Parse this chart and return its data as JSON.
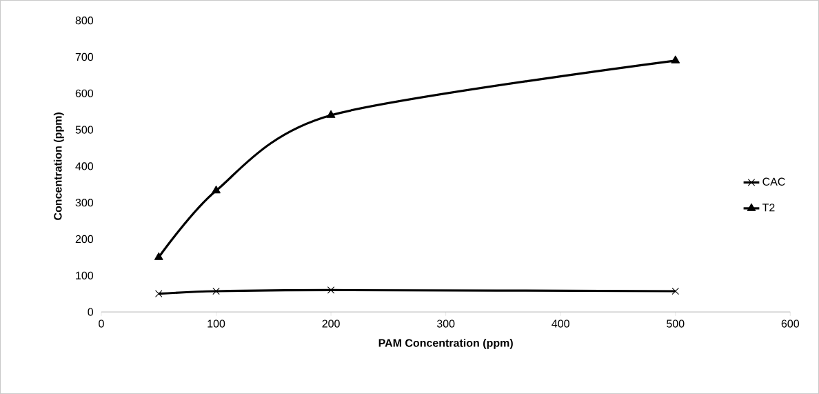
{
  "chart_data": {
    "type": "line",
    "xlabel": "PAM Concentration (ppm)",
    "ylabel": "Concentration (ppm)",
    "x": [
      50,
      100,
      200,
      500
    ],
    "series": [
      {
        "name": "CAC",
        "color": "#000000",
        "marker": "cross",
        "values": [
          50,
          57,
          60,
          57
        ]
      },
      {
        "name": "T2",
        "color": "#000000",
        "marker": "triangle",
        "values": [
          150,
          333,
          540,
          690
        ]
      }
    ],
    "xlim": [
      0,
      600
    ],
    "xticks": [
      0,
      100,
      200,
      300,
      400,
      500,
      600
    ],
    "ylim": [
      0,
      800
    ],
    "yticks": [
      0,
      100,
      200,
      300,
      400,
      500,
      600,
      700,
      800
    ],
    "grid": false,
    "legend": "right",
    "line_style": "solid"
  }
}
